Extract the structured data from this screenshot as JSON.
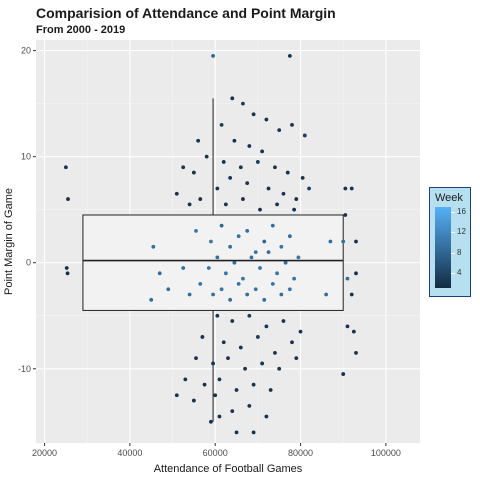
{
  "title": "Comparision of Attendance and Point Margin",
  "subtitle": "From 2000 - 2019",
  "legend": {
    "title": "Week",
    "labels": [
      "16",
      "12",
      "8",
      "4"
    ],
    "values": [
      16,
      12,
      8,
      4
    ],
    "range": [
      1,
      17
    ],
    "colors": {
      "low": "#132b43",
      "high": "#56b1f7"
    }
  },
  "chart_data": {
    "type": "scatter",
    "xlabel": "Attendance of Football Games",
    "ylabel": "Point Margin of Game",
    "xlim": [
      18000,
      108000
    ],
    "ylim": [
      -17,
      21
    ],
    "x_ticks": [
      20000,
      40000,
      60000,
      80000,
      100000
    ],
    "x_tick_labels": [
      "20000",
      "40000",
      "60000",
      "80000",
      "100000"
    ],
    "y_ticks": [
      -10,
      0,
      10,
      20
    ],
    "y_tick_labels": [
      "-10",
      "0",
      "10",
      "20"
    ],
    "grid": true,
    "legend_position": "right",
    "overlay_box": {
      "x_left": 29000,
      "x_right": 90000,
      "q1": -4.5,
      "median": 0.2,
      "q3": 4.5,
      "whisker_x": 59500,
      "whisker_low": -15,
      "whisker_high": 15.5
    },
    "points": [
      [
        25000,
        9,
        2
      ],
      [
        25500,
        6,
        2
      ],
      [
        25200,
        -0.5,
        2
      ],
      [
        25400,
        -1,
        2
      ],
      [
        59500,
        19.5,
        8
      ],
      [
        77500,
        19.5,
        2
      ],
      [
        64000,
        15.5,
        2
      ],
      [
        66500,
        15,
        3
      ],
      [
        69000,
        14,
        2
      ],
      [
        72000,
        13.5,
        2
      ],
      [
        61500,
        13,
        3
      ],
      [
        75000,
        12.5,
        2
      ],
      [
        78000,
        13,
        2
      ],
      [
        81000,
        12,
        3
      ],
      [
        64500,
        11.5,
        2
      ],
      [
        68000,
        11,
        2
      ],
      [
        71000,
        10.5,
        2
      ],
      [
        56000,
        11.5,
        2
      ],
      [
        52500,
        9,
        2
      ],
      [
        55000,
        8.5,
        2
      ],
      [
        58000,
        10,
        2
      ],
      [
        62000,
        9.5,
        2
      ],
      [
        66000,
        9,
        2
      ],
      [
        70000,
        9.5,
        3
      ],
      [
        74000,
        9,
        2
      ],
      [
        77000,
        8.5,
        2
      ],
      [
        80500,
        8,
        2
      ],
      [
        56500,
        6,
        2
      ],
      [
        60500,
        7,
        2
      ],
      [
        63500,
        8,
        2
      ],
      [
        67500,
        7.5,
        2
      ],
      [
        72500,
        7,
        2
      ],
      [
        76000,
        6.5,
        2
      ],
      [
        79000,
        6,
        2
      ],
      [
        82000,
        7,
        3
      ],
      [
        90500,
        7,
        2
      ],
      [
        92000,
        7,
        2
      ],
      [
        51000,
        6.5,
        2
      ],
      [
        54000,
        5.5,
        2
      ],
      [
        62500,
        5.5,
        2
      ],
      [
        66500,
        6,
        2
      ],
      [
        70500,
        5,
        2
      ],
      [
        74500,
        5.5,
        2
      ],
      [
        78500,
        5,
        2
      ],
      [
        90500,
        4.5,
        2
      ],
      [
        55500,
        3,
        10
      ],
      [
        59000,
        2,
        10
      ],
      [
        61500,
        3.5,
        8
      ],
      [
        63500,
        1.5,
        9
      ],
      [
        65500,
        2.5,
        10
      ],
      [
        67500,
        3,
        9
      ],
      [
        69500,
        1,
        10
      ],
      [
        71500,
        2,
        8
      ],
      [
        73500,
        3.5,
        9
      ],
      [
        75500,
        1.5,
        10
      ],
      [
        77500,
        2.5,
        9
      ],
      [
        79500,
        0.5,
        10
      ],
      [
        87000,
        2,
        9
      ],
      [
        90000,
        2,
        9
      ],
      [
        45500,
        1.5,
        9
      ],
      [
        93000,
        2,
        2
      ],
      [
        58500,
        -0.5,
        10
      ],
      [
        60500,
        0.5,
        9
      ],
      [
        62500,
        -1,
        10
      ],
      [
        64500,
        0,
        9
      ],
      [
        66500,
        -1.5,
        10
      ],
      [
        68500,
        0.5,
        9
      ],
      [
        70500,
        -0.5,
        10
      ],
      [
        72500,
        1,
        9
      ],
      [
        74500,
        -1,
        10
      ],
      [
        76500,
        0,
        9
      ],
      [
        78500,
        -1.5,
        10
      ],
      [
        47000,
        -1,
        9
      ],
      [
        52500,
        -0.5,
        9
      ],
      [
        49000,
        -2.5,
        9
      ],
      [
        54000,
        -3,
        9
      ],
      [
        56500,
        -2,
        10
      ],
      [
        59500,
        -3,
        9
      ],
      [
        61500,
        -2.5,
        10
      ],
      [
        63500,
        -3.5,
        9
      ],
      [
        65500,
        -2,
        10
      ],
      [
        67500,
        -3,
        9
      ],
      [
        69500,
        -2.5,
        10
      ],
      [
        71500,
        -3.5,
        9
      ],
      [
        73500,
        -2,
        10
      ],
      [
        75500,
        -3,
        9
      ],
      [
        77500,
        -2.5,
        10
      ],
      [
        45000,
        -3.5,
        9
      ],
      [
        86000,
        -3,
        9
      ],
      [
        92000,
        -3,
        2
      ],
      [
        93000,
        -1,
        2
      ],
      [
        91000,
        -1.5,
        9
      ],
      [
        60500,
        -5,
        2
      ],
      [
        64000,
        -5.5,
        2
      ],
      [
        68000,
        -5,
        3
      ],
      [
        72000,
        -6,
        2
      ],
      [
        76000,
        -5.5,
        2
      ],
      [
        80000,
        -6.5,
        2
      ],
      [
        91000,
        -6,
        2
      ],
      [
        92500,
        -6.5,
        2
      ],
      [
        57000,
        -7,
        2
      ],
      [
        62000,
        -7.5,
        2
      ],
      [
        66000,
        -8,
        2
      ],
      [
        70000,
        -7,
        3
      ],
      [
        74000,
        -8.5,
        2
      ],
      [
        78000,
        -7.5,
        2
      ],
      [
        55500,
        -9,
        2
      ],
      [
        59500,
        -9.5,
        2
      ],
      [
        63000,
        -9,
        2
      ],
      [
        67000,
        -10,
        2
      ],
      [
        71000,
        -9.5,
        2
      ],
      [
        75000,
        -10,
        2
      ],
      [
        79000,
        -9,
        2
      ],
      [
        93000,
        -8.5,
        2
      ],
      [
        90000,
        -10.5,
        2
      ],
      [
        53000,
        -11,
        2
      ],
      [
        57500,
        -11.5,
        2
      ],
      [
        61000,
        -11,
        2
      ],
      [
        65000,
        -12,
        2
      ],
      [
        69000,
        -11.5,
        2
      ],
      [
        73000,
        -12,
        2
      ],
      [
        51000,
        -12.5,
        2
      ],
      [
        55000,
        -13,
        2
      ],
      [
        60000,
        -12.5,
        2
      ],
      [
        64000,
        -14,
        2
      ],
      [
        68000,
        -13.5,
        2
      ],
      [
        72000,
        -14.5,
        2
      ],
      [
        59000,
        -15,
        2
      ],
      [
        65000,
        -16,
        2
      ],
      [
        69000,
        -16,
        2
      ],
      [
        61000,
        -14.5,
        2
      ]
    ]
  }
}
